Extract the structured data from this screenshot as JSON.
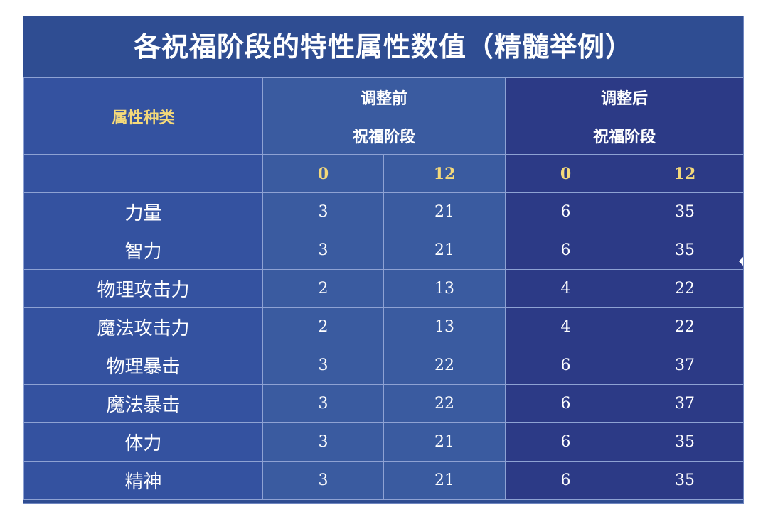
{
  "title": "各祝福阶段的特性属性数值（精髓举例）",
  "headers": {
    "attribute_type": "属性种类",
    "before": "调整前",
    "after": "调整后",
    "stage_before": "祝福阶段",
    "stage_after": "祝福阶段",
    "stage_levels": [
      "0",
      "12",
      "0",
      "12"
    ]
  },
  "rows": [
    {
      "label": "力量",
      "before_0": "3",
      "before_12": "21",
      "after_0": "6",
      "after_12": "35"
    },
    {
      "label": "智力",
      "before_0": "3",
      "before_12": "21",
      "after_0": "6",
      "after_12": "35"
    },
    {
      "label": "物理攻击力",
      "before_0": "2",
      "before_12": "13",
      "after_0": "4",
      "after_12": "22"
    },
    {
      "label": "魔法攻击力",
      "before_0": "2",
      "before_12": "13",
      "after_0": "4",
      "after_12": "22"
    },
    {
      "label": "物理暴击",
      "before_0": "3",
      "before_12": "22",
      "after_0": "6",
      "after_12": "37"
    },
    {
      "label": "魔法暴击",
      "before_0": "3",
      "before_12": "22",
      "after_0": "6",
      "after_12": "37"
    },
    {
      "label": "体力",
      "before_0": "3",
      "before_12": "21",
      "after_0": "6",
      "after_12": "35"
    },
    {
      "label": "精神",
      "before_0": "3",
      "before_12": "21",
      "after_0": "6",
      "after_12": "35"
    }
  ],
  "colors": {
    "frame": "#2f4d92",
    "before_column": "#3a5ba0",
    "after_column": "#2c3a86",
    "header_accent": "#f4d97a"
  }
}
